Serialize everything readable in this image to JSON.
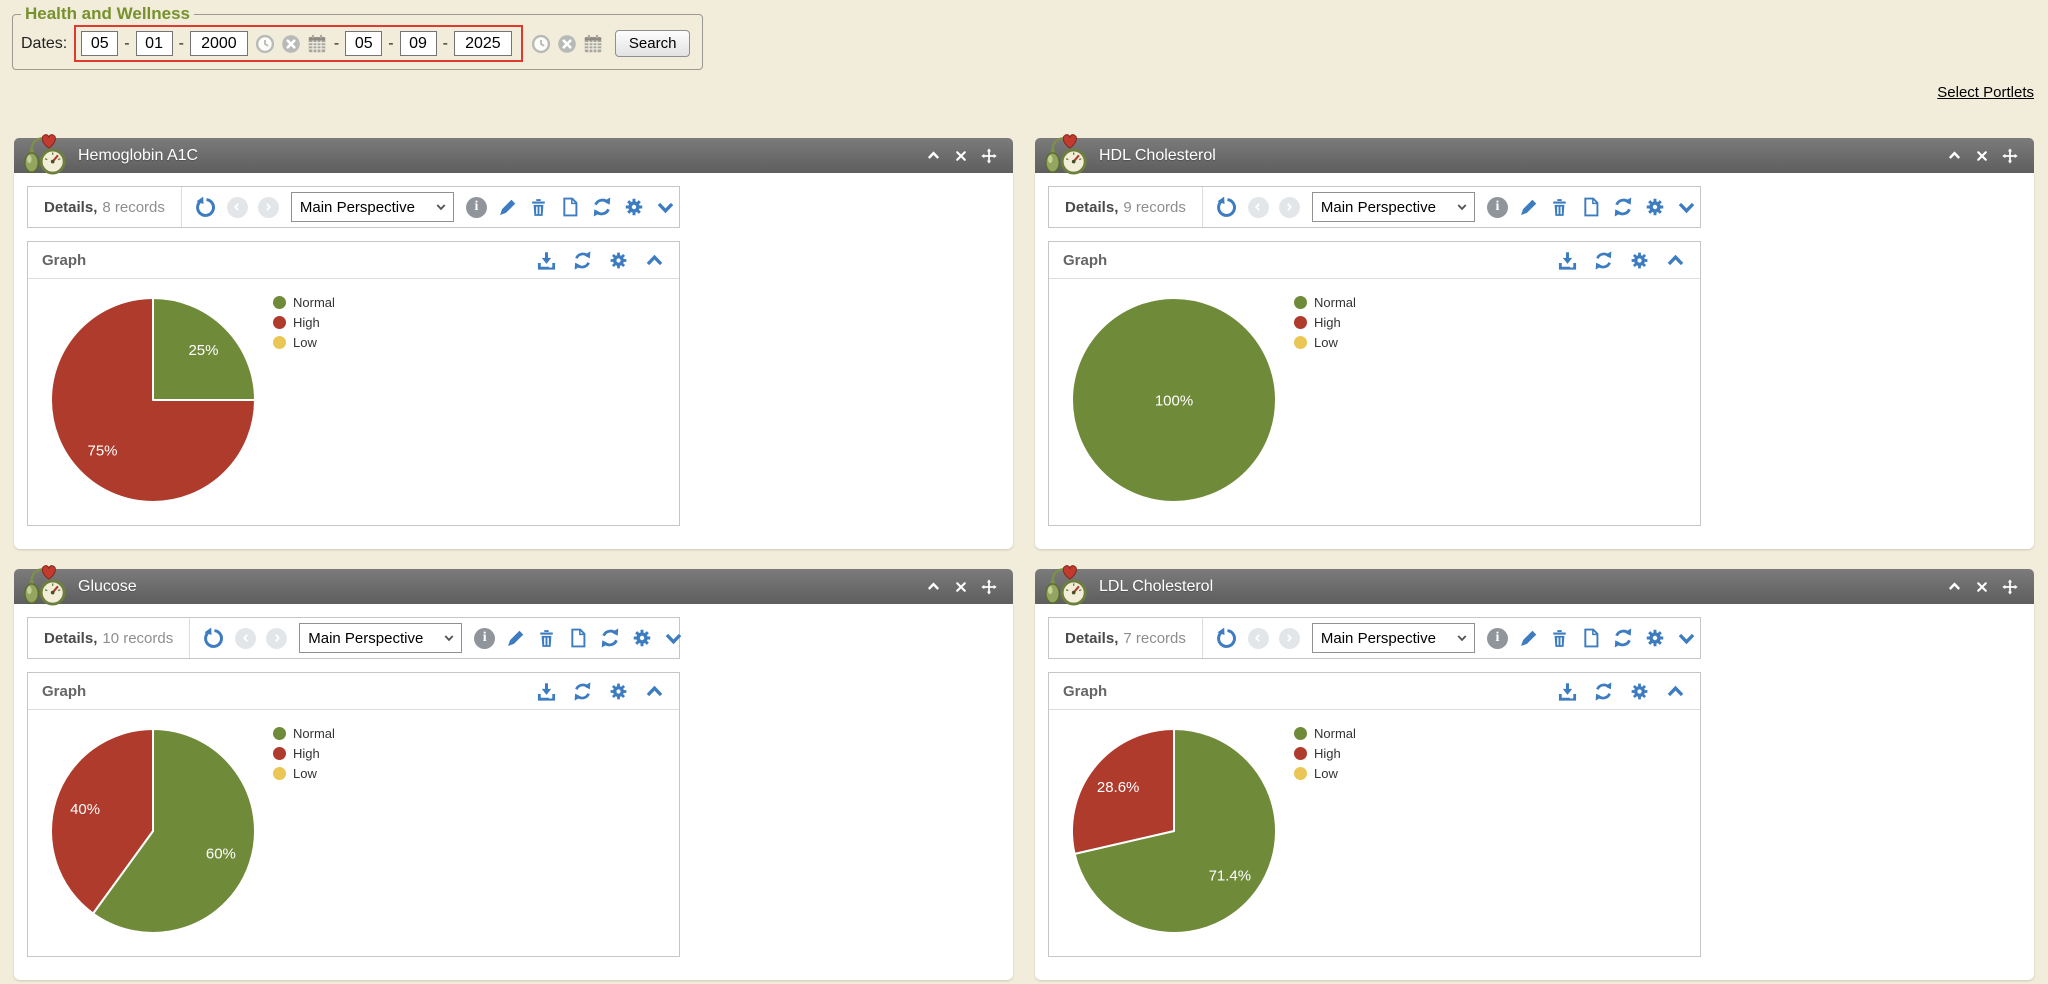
{
  "app": {
    "select_portlets_label": "Select Portlets",
    "background_color": "#f2ecda"
  },
  "filter_panel": {
    "legend": "Health and Wellness",
    "dates_label": "Dates:",
    "date_from": {
      "month": "05",
      "day": "01",
      "year": "2000"
    },
    "date_to": {
      "month": "05",
      "day": "09",
      "year": "2025"
    },
    "separator": "-",
    "search_button": "Search",
    "highlight_color": "#e03a2e",
    "date_icons": [
      "clock-icon",
      "clear-icon",
      "calendar-icon"
    ]
  },
  "portlet_chrome": {
    "details_label": "Details,",
    "perspective_selected": "Main Perspective",
    "perspective_options": [
      "Main Perspective"
    ],
    "graph_label": "Graph",
    "header_icons": [
      "collapse-icon",
      "close-icon",
      "move-icon"
    ],
    "toolbar_icons": [
      "undo-icon",
      "previous-icon",
      "next-icon",
      "perspective-select",
      "info-icon",
      "edit-icon",
      "delete-icon",
      "new-document-icon",
      "refresh-icon",
      "settings-icon",
      "collapse-section-icon"
    ],
    "graph_icons": [
      "download-icon",
      "refresh-icon",
      "settings-icon",
      "collapse-graph-icon"
    ]
  },
  "colors": {
    "accent_blue": "#3d7cc0",
    "portlet_header_gray": "#6a6a6a",
    "pie_green": "#6f8b3a",
    "pie_red": "#ae3b2c",
    "pie_yellow": "#e9c655"
  },
  "portlets": [
    {
      "title": "Hemoglobin A1C",
      "records": "8 records"
    },
    {
      "title": "HDL Cholesterol",
      "records": "9 records"
    },
    {
      "title": "Glucose",
      "records": "10 records"
    },
    {
      "title": "LDL Cholesterol",
      "records": "7 records"
    }
  ],
  "chart_data": [
    {
      "type": "pie",
      "title": "Hemoglobin A1C",
      "categories": [
        "Normal",
        "High",
        "Low"
      ],
      "values": [
        25,
        75,
        0
      ],
      "labels": [
        "25%",
        "75%",
        ""
      ],
      "colors": [
        "#6f8b3a",
        "#ae3b2c",
        "#e9c655"
      ],
      "legend_position": "right",
      "start_angle": "top",
      "direction": "clockwise"
    },
    {
      "type": "pie",
      "title": "HDL Cholesterol",
      "categories": [
        "Normal",
        "High",
        "Low"
      ],
      "values": [
        100,
        0,
        0
      ],
      "labels": [
        "100%",
        "",
        ""
      ],
      "colors": [
        "#6f8b3a",
        "#ae3b2c",
        "#e9c655"
      ],
      "legend_position": "right",
      "start_angle": "top",
      "direction": "clockwise"
    },
    {
      "type": "pie",
      "title": "Glucose",
      "categories": [
        "Normal",
        "High",
        "Low"
      ],
      "values": [
        60,
        40,
        0
      ],
      "labels": [
        "60%",
        "40%",
        ""
      ],
      "colors": [
        "#6f8b3a",
        "#ae3b2c",
        "#e9c655"
      ],
      "legend_position": "right",
      "start_angle": "top",
      "direction": "clockwise"
    },
    {
      "type": "pie",
      "title": "LDL Cholesterol",
      "categories": [
        "Normal",
        "High",
        "Low"
      ],
      "values": [
        71.4,
        28.6,
        0
      ],
      "labels": [
        "71.4%",
        "28.6%",
        ""
      ],
      "colors": [
        "#6f8b3a",
        "#ae3b2c",
        "#e9c655"
      ],
      "legend_position": "right",
      "start_angle": "top",
      "direction": "clockwise"
    }
  ]
}
